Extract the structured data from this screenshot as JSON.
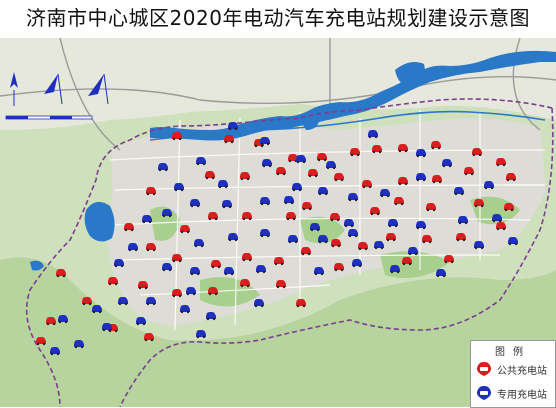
{
  "title": "济南市中心城区2020年电动汽车充电站规划建设示意图",
  "legend": {
    "title": "图例",
    "items": [
      {
        "label": "公共充电站",
        "color": "#d81e1e",
        "icon": "public-charging-station-icon"
      },
      {
        "label": "专用充电站",
        "color": "#1f2fbf",
        "icon": "dedicated-charging-station-icon"
      }
    ]
  },
  "colors": {
    "water": "#2a78c8",
    "green": "#a8cf8e",
    "urban": "#d7d7d7",
    "boundary": "#7b3f8f",
    "public_station": "#d81e1e",
    "dedicated_station": "#1f2fbf"
  },
  "stations": {
    "public": [
      [
        176,
        135
      ],
      [
        228,
        138
      ],
      [
        258,
        142
      ],
      [
        292,
        157
      ],
      [
        321,
        156
      ],
      [
        354,
        151
      ],
      [
        376,
        148
      ],
      [
        402,
        147
      ],
      [
        435,
        144
      ],
      [
        476,
        151
      ],
      [
        500,
        161
      ],
      [
        209,
        174
      ],
      [
        244,
        175
      ],
      [
        280,
        170
      ],
      [
        312,
        172
      ],
      [
        338,
        176
      ],
      [
        366,
        183
      ],
      [
        402,
        180
      ],
      [
        436,
        178
      ],
      [
        468,
        170
      ],
      [
        510,
        176
      ],
      [
        150,
        190
      ],
      [
        184,
        228
      ],
      [
        212,
        215
      ],
      [
        246,
        215
      ],
      [
        290,
        215
      ],
      [
        306,
        205
      ],
      [
        334,
        216
      ],
      [
        374,
        210
      ],
      [
        398,
        200
      ],
      [
        430,
        206
      ],
      [
        478,
        202
      ],
      [
        508,
        206
      ],
      [
        128,
        226
      ],
      [
        150,
        246
      ],
      [
        176,
        257
      ],
      [
        215,
        263
      ],
      [
        246,
        256
      ],
      [
        278,
        260
      ],
      [
        305,
        250
      ],
      [
        335,
        242
      ],
      [
        362,
        245
      ],
      [
        390,
        236
      ],
      [
        426,
        238
      ],
      [
        460,
        236
      ],
      [
        500,
        225
      ],
      [
        112,
        280
      ],
      [
        142,
        284
      ],
      [
        176,
        292
      ],
      [
        212,
        290
      ],
      [
        244,
        282
      ],
      [
        280,
        283
      ],
      [
        300,
        302
      ],
      [
        338,
        266
      ],
      [
        406,
        260
      ],
      [
        448,
        258
      ],
      [
        86,
        300
      ],
      [
        60,
        272
      ],
      [
        112,
        327
      ],
      [
        148,
        336
      ],
      [
        50,
        320
      ],
      [
        40,
        340
      ]
    ],
    "dedicated": [
      [
        232,
        125
      ],
      [
        264,
        140
      ],
      [
        300,
        158
      ],
      [
        330,
        164
      ],
      [
        372,
        133
      ],
      [
        420,
        152
      ],
      [
        446,
        162
      ],
      [
        488,
        184
      ],
      [
        200,
        160
      ],
      [
        222,
        183
      ],
      [
        266,
        162
      ],
      [
        296,
        186
      ],
      [
        322,
        190
      ],
      [
        352,
        196
      ],
      [
        384,
        192
      ],
      [
        420,
        176
      ],
      [
        458,
        190
      ],
      [
        162,
        166
      ],
      [
        178,
        186
      ],
      [
        194,
        202
      ],
      [
        226,
        203
      ],
      [
        264,
        200
      ],
      [
        288,
        199
      ],
      [
        314,
        226
      ],
      [
        348,
        222
      ],
      [
        392,
        222
      ],
      [
        420,
        224
      ],
      [
        462,
        219
      ],
      [
        496,
        217
      ],
      [
        166,
        212
      ],
      [
        146,
        218
      ],
      [
        198,
        242
      ],
      [
        232,
        236
      ],
      [
        264,
        232
      ],
      [
        292,
        238
      ],
      [
        322,
        238
      ],
      [
        352,
        232
      ],
      [
        378,
        244
      ],
      [
        412,
        250
      ],
      [
        478,
        244
      ],
      [
        512,
        240
      ],
      [
        132,
        246
      ],
      [
        166,
        266
      ],
      [
        194,
        270
      ],
      [
        228,
        270
      ],
      [
        260,
        268
      ],
      [
        318,
        270
      ],
      [
        356,
        262
      ],
      [
        394,
        268
      ],
      [
        440,
        272
      ],
      [
        118,
        262
      ],
      [
        150,
        300
      ],
      [
        184,
        308
      ],
      [
        210,
        315
      ],
      [
        258,
        302
      ],
      [
        122,
        300
      ],
      [
        96,
        308
      ],
      [
        106,
        326
      ],
      [
        62,
        318
      ],
      [
        78,
        343
      ],
      [
        54,
        350
      ],
      [
        140,
        320
      ],
      [
        200,
        333
      ],
      [
        190,
        290
      ]
    ]
  }
}
